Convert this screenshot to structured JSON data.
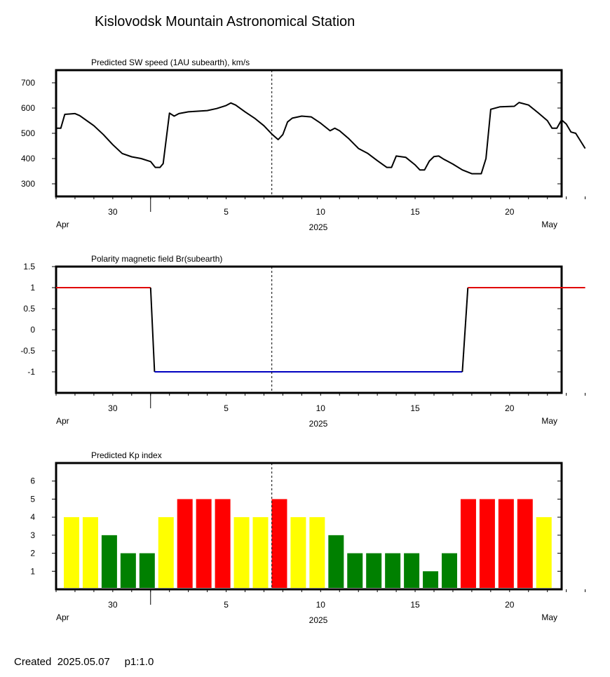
{
  "page": {
    "title": "Kislovodsk Mountain Astronomical Station",
    "footer_created": "Created  2025.05.07",
    "footer_page": "p1:1.0"
  },
  "time_axis": {
    "start_date": "2025-03-27",
    "end_date": "2025-04-24",
    "tick_labels": [
      {
        "date": "2025-03-30",
        "label": "30"
      },
      {
        "date": "2025-04-05",
        "label": "5"
      },
      {
        "date": "2025-04-10",
        "label": "10"
      },
      {
        "date": "2025-04-15",
        "label": "15"
      },
      {
        "date": "2025-04-20",
        "label": "20"
      }
    ],
    "month_start_label": "Apr",
    "year_label": "2025",
    "month_end_label": "May",
    "current_time_marker": "2025-04-07T10:00"
  },
  "colors": {
    "positive_polarity": "#e00000",
    "negative_polarity": "#0000c0",
    "kp_quiet": "#008000",
    "kp_active": "#ffff00",
    "kp_storm": "#ff0000"
  },
  "chart_data": [
    {
      "type": "line",
      "title": "Predicted SW speed (1AU subearth), km/s",
      "ylim": [
        250,
        750
      ],
      "yticks": [
        300,
        400,
        500,
        600,
        700
      ],
      "ytick_labels": [
        "300",
        "400",
        "500",
        "600",
        "700"
      ],
      "series": [
        {
          "color": "#000000",
          "points": [
            [
              "2025-03-27T00:00",
              520
            ],
            [
              "2025-03-27T06:00",
              520
            ],
            [
              "2025-03-27T11:00",
              575
            ],
            [
              "2025-03-28T00:00",
              578
            ],
            [
              "2025-03-28T06:00",
              570
            ],
            [
              "2025-03-29T00:00",
              530
            ],
            [
              "2025-03-29T12:00",
              495
            ],
            [
              "2025-03-30T00:00",
              455
            ],
            [
              "2025-03-30T12:00",
              420
            ],
            [
              "2025-03-31T00:00",
              407
            ],
            [
              "2025-03-31T12:00",
              400
            ],
            [
              "2025-04-01T00:00",
              388
            ],
            [
              "2025-04-01T06:00",
              365
            ],
            [
              "2025-04-01T12:00",
              365
            ],
            [
              "2025-04-01T16:00",
              380
            ],
            [
              "2025-04-02T00:00",
              580
            ],
            [
              "2025-04-02T06:00",
              568
            ],
            [
              "2025-04-02T12:00",
              578
            ],
            [
              "2025-04-03T00:00",
              585
            ],
            [
              "2025-04-04T00:00",
              590
            ],
            [
              "2025-04-04T12:00",
              598
            ],
            [
              "2025-04-05T00:00",
              610
            ],
            [
              "2025-04-05T06:00",
              620
            ],
            [
              "2025-04-05T12:00",
              612
            ],
            [
              "2025-04-06T00:00",
              585
            ],
            [
              "2025-04-06T12:00",
              560
            ],
            [
              "2025-04-07T00:00",
              530
            ],
            [
              "2025-04-07T10:00",
              497
            ],
            [
              "2025-04-07T18:00",
              475
            ],
            [
              "2025-04-08T00:00",
              495
            ],
            [
              "2025-04-08T06:00",
              545
            ],
            [
              "2025-04-08T12:00",
              560
            ],
            [
              "2025-04-09T00:00",
              568
            ],
            [
              "2025-04-09T12:00",
              565
            ],
            [
              "2025-04-10T00:00",
              540
            ],
            [
              "2025-04-10T12:00",
              510
            ],
            [
              "2025-04-10T18:00",
              520
            ],
            [
              "2025-04-11T00:00",
              510
            ],
            [
              "2025-04-11T12:00",
              478
            ],
            [
              "2025-04-12T00:00",
              440
            ],
            [
              "2025-04-12T12:00",
              420
            ],
            [
              "2025-04-13T00:00",
              392
            ],
            [
              "2025-04-13T12:00",
              365
            ],
            [
              "2025-04-13T18:00",
              365
            ],
            [
              "2025-04-14T00:00",
              410
            ],
            [
              "2025-04-14T12:00",
              405
            ],
            [
              "2025-04-15T00:00",
              375
            ],
            [
              "2025-04-15T06:00",
              355
            ],
            [
              "2025-04-15T12:00",
              355
            ],
            [
              "2025-04-15T18:00",
              390
            ],
            [
              "2025-04-16T00:00",
              408
            ],
            [
              "2025-04-16T06:00",
              410
            ],
            [
              "2025-04-16T12:00",
              398
            ],
            [
              "2025-04-17T00:00",
              378
            ],
            [
              "2025-04-17T12:00",
              355
            ],
            [
              "2025-04-18T00:00",
              340
            ],
            [
              "2025-04-18T12:00",
              340
            ],
            [
              "2025-04-18T18:00",
              400
            ],
            [
              "2025-04-19T00:00",
              595
            ],
            [
              "2025-04-19T12:00",
              605
            ],
            [
              "2025-04-20T06:00",
              607
            ],
            [
              "2025-04-20T12:00",
              622
            ],
            [
              "2025-04-21T00:00",
              612
            ],
            [
              "2025-04-21T12:00",
              582
            ],
            [
              "2025-04-22T00:00",
              550
            ],
            [
              "2025-04-22T06:00",
              520
            ],
            [
              "2025-04-22T12:00",
              520
            ],
            [
              "2025-04-22T18:00",
              553
            ],
            [
              "2025-04-23T00:00",
              537
            ],
            [
              "2025-04-23T06:00",
              505
            ],
            [
              "2025-04-23T12:00",
              500
            ],
            [
              "2025-04-24T00:00",
              440
            ]
          ]
        }
      ]
    },
    {
      "type": "line",
      "title": "Polarity magnetic field  Br(subearth)",
      "ylim": [
        -1.5,
        1.5
      ],
      "yticks": [
        1.5,
        1,
        0.5,
        0,
        -0.5,
        -1
      ],
      "ytick_labels": [
        "1.5",
        "1",
        "0.5",
        "0",
        "-0.5",
        "-1"
      ],
      "series": [
        {
          "color": "#e00000",
          "points": [
            [
              "2025-03-27T00:00",
              1
            ],
            [
              "2025-04-01T00:00",
              1
            ]
          ]
        },
        {
          "color": "#000000",
          "points": [
            [
              "2025-04-01T00:00",
              1
            ],
            [
              "2025-04-01T05:00",
              -1
            ]
          ]
        },
        {
          "color": "#0000c0",
          "points": [
            [
              "2025-04-01T05:00",
              -1
            ],
            [
              "2025-04-17T12:00",
              -1
            ]
          ]
        },
        {
          "color": "#000000",
          "points": [
            [
              "2025-04-17T12:00",
              -1
            ],
            [
              "2025-04-17T19:00",
              1
            ]
          ]
        },
        {
          "color": "#e00000",
          "points": [
            [
              "2025-04-17T19:00",
              1
            ],
            [
              "2025-04-24T00:00",
              1
            ]
          ]
        }
      ]
    },
    {
      "type": "bar",
      "title": "Predicted Kp index",
      "ylim": [
        0,
        7
      ],
      "yticks": [
        1,
        2,
        3,
        4,
        5,
        6
      ],
      "ytick_labels": [
        "1",
        "2",
        "3",
        "4",
        "5",
        "6"
      ],
      "bars": [
        {
          "date": "2025-03-27",
          "value": 4,
          "color": "#ffff00"
        },
        {
          "date": "2025-03-28",
          "value": 4,
          "color": "#ffff00"
        },
        {
          "date": "2025-03-29",
          "value": 3,
          "color": "#008000"
        },
        {
          "date": "2025-03-30",
          "value": 2,
          "color": "#008000"
        },
        {
          "date": "2025-03-31",
          "value": 2,
          "color": "#008000"
        },
        {
          "date": "2025-04-01",
          "value": 4,
          "color": "#ffff00"
        },
        {
          "date": "2025-04-02",
          "value": 5,
          "color": "#ff0000"
        },
        {
          "date": "2025-04-03",
          "value": 5,
          "color": "#ff0000"
        },
        {
          "date": "2025-04-04",
          "value": 5,
          "color": "#ff0000"
        },
        {
          "date": "2025-04-05",
          "value": 4,
          "color": "#ffff00"
        },
        {
          "date": "2025-04-06",
          "value": 4,
          "color": "#ffff00"
        },
        {
          "date": "2025-04-07",
          "value": 5,
          "color": "#ff0000"
        },
        {
          "date": "2025-04-08",
          "value": 4,
          "color": "#ffff00"
        },
        {
          "date": "2025-04-09",
          "value": 4,
          "color": "#ffff00"
        },
        {
          "date": "2025-04-10",
          "value": 3,
          "color": "#008000"
        },
        {
          "date": "2025-04-11",
          "value": 2,
          "color": "#008000"
        },
        {
          "date": "2025-04-12",
          "value": 2,
          "color": "#008000"
        },
        {
          "date": "2025-04-13",
          "value": 2,
          "color": "#008000"
        },
        {
          "date": "2025-04-14",
          "value": 2,
          "color": "#008000"
        },
        {
          "date": "2025-04-15",
          "value": 1,
          "color": "#008000"
        },
        {
          "date": "2025-04-16",
          "value": 2,
          "color": "#008000"
        },
        {
          "date": "2025-04-17",
          "value": 5,
          "color": "#ff0000"
        },
        {
          "date": "2025-04-18",
          "value": 5,
          "color": "#ff0000"
        },
        {
          "date": "2025-04-19",
          "value": 5,
          "color": "#ff0000"
        },
        {
          "date": "2025-04-20",
          "value": 5,
          "color": "#ff0000"
        },
        {
          "date": "2025-04-21",
          "value": 4,
          "color": "#ffff00"
        }
      ]
    }
  ]
}
